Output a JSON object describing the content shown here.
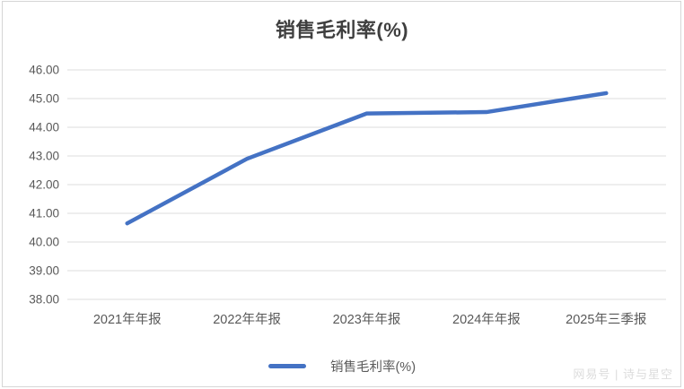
{
  "chart": {
    "title": "销售毛利率(%)",
    "legend_label": "销售毛利率(%)",
    "watermark": "网易号 | 诗与星空"
  },
  "chart_data": {
    "type": "line",
    "title": "销售毛利率(%)",
    "categories": [
      "2021年年报",
      "2022年年报",
      "2023年年报",
      "2024年年报",
      "2025年三季报"
    ],
    "series": [
      {
        "name": "销售毛利率(%)",
        "values": [
          40.65,
          42.9,
          44.48,
          44.53,
          45.19
        ]
      }
    ],
    "xlabel": "",
    "ylabel": "",
    "ylim": [
      38,
      46
    ],
    "ytick_step": 1,
    "ytick_decimals": 2,
    "grid": true,
    "legend_position": "bottom"
  },
  "colors": {
    "line": "#4472C4",
    "gridline": "#dcdcdc",
    "axis_text": "#595959",
    "title_text": "#3f3f3f",
    "frame_border": "#d6d6d6",
    "watermark_text": "#dcdcdc"
  }
}
